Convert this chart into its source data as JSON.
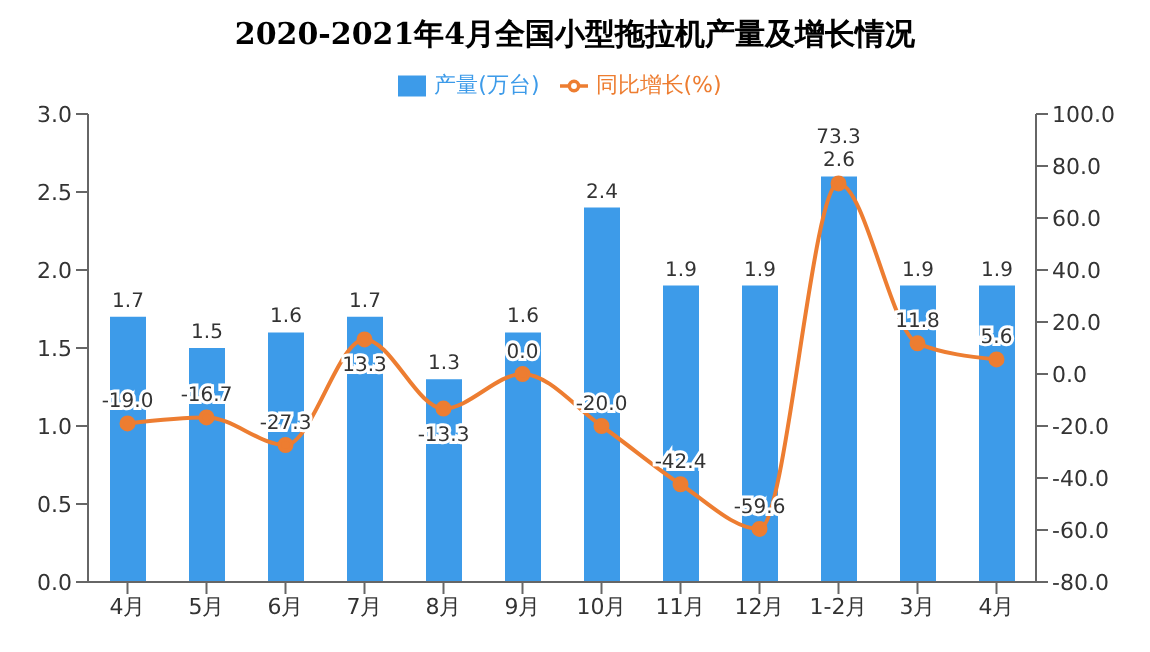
{
  "chart_data": {
    "type": "bar",
    "title": "2020-2021年4月全国小型拖拉机产量及增长情况",
    "categories": [
      "4月",
      "5月",
      "6月",
      "7月",
      "8月",
      "9月",
      "10月",
      "11月",
      "12月",
      "1-2月",
      "3月",
      "4月"
    ],
    "series": [
      {
        "name": "产量(万台)",
        "color": "#3d9be9",
        "values": [
          1.7,
          1.5,
          1.6,
          1.7,
          1.3,
          1.6,
          2.4,
          1.9,
          1.9,
          2.6,
          1.9,
          1.9
        ],
        "data_labels": true
      },
      {
        "name": "同比增长(%)",
        "type": "line",
        "axis": "y2",
        "color": "#ed7d31",
        "marker": "circle",
        "values": [
          -19.0,
          -16.7,
          -27.3,
          13.3,
          -13.3,
          0.0,
          -20.0,
          -42.4,
          -59.6,
          73.3,
          11.8,
          5.6
        ],
        "value_labels": [
          "-19.0",
          "-16.7",
          "-27.3",
          "13.3",
          "-13.3",
          "0.0",
          "-20.0",
          "-42.4",
          "-59.6",
          "73.3",
          "11.8",
          "5.6"
        ]
      }
    ],
    "ylim": [
      0,
      3
    ],
    "yticks": [
      {
        "value": 0,
        "label": "0.0"
      },
      {
        "value": 0.5,
        "label": "0.5"
      },
      {
        "value": 1,
        "label": "1.0"
      },
      {
        "value": 1.5,
        "label": "1.5"
      },
      {
        "value": 2,
        "label": "2.0"
      },
      {
        "value": 2.5,
        "label": "2.5"
      },
      {
        "value": 3,
        "label": "3.0"
      }
    ],
    "y2lim": [
      -80,
      100
    ],
    "y2ticks": [
      {
        "value": -80,
        "label": "-80.0"
      },
      {
        "value": -60,
        "label": "-60.0"
      },
      {
        "value": -40,
        "label": "-40.0"
      },
      {
        "value": -20,
        "label": "-20.0"
      },
      {
        "value": 0,
        "label": "0.0"
      },
      {
        "value": 20,
        "label": "20.0"
      },
      {
        "value": 40,
        "label": "40.0"
      },
      {
        "value": 60,
        "label": "60.0"
      },
      {
        "value": 80,
        "label": "80.0"
      },
      {
        "value": 100,
        "label": "100.0"
      }
    ],
    "legend": "top",
    "grid": false
  }
}
